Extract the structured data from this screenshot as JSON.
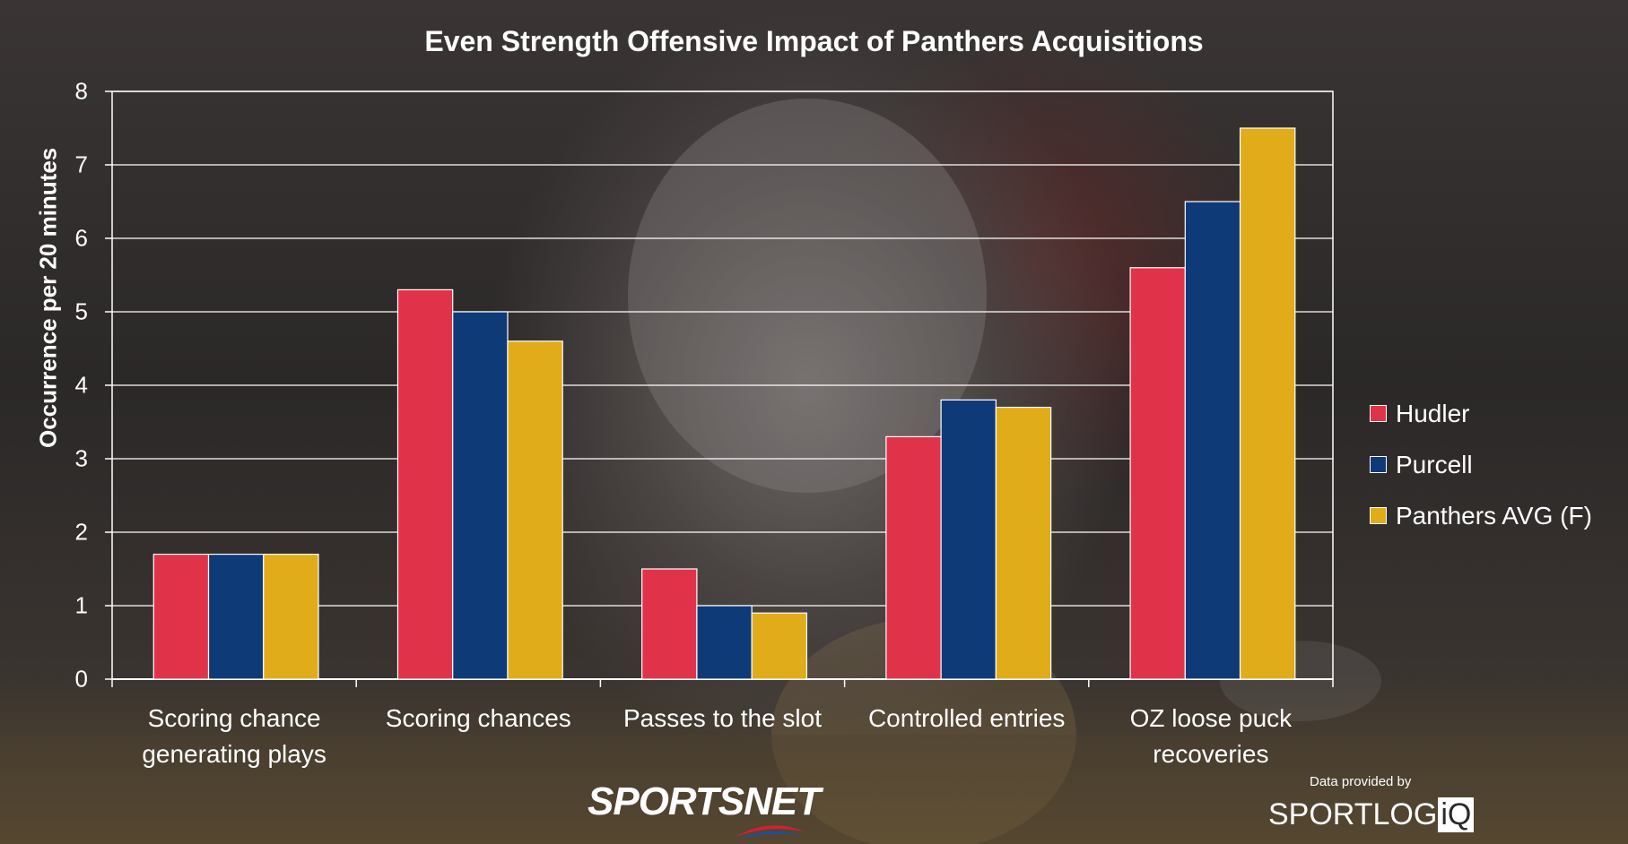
{
  "chart_data": {
    "type": "bar",
    "title": "Even Strength Offensive Impact of Panthers Acquisitions",
    "xlabel": "",
    "ylabel": "Occurrence per 20 minutes",
    "ylim": [
      0,
      8
    ],
    "yticks": [
      "0",
      "1",
      "2",
      "3",
      "4",
      "5",
      "6",
      "7",
      "8"
    ],
    "grid": true,
    "legend_position": "right",
    "categories": [
      [
        "Scoring chance",
        "generating plays"
      ],
      [
        "Scoring chances"
      ],
      [
        "Passes to the slot"
      ],
      [
        "Controlled entries"
      ],
      [
        "OZ loose puck",
        "recoveries"
      ]
    ],
    "series": [
      {
        "name": "Hudler",
        "color": "#e0334a",
        "values": [
          1.7,
          5.3,
          1.5,
          3.3,
          5.6
        ]
      },
      {
        "name": "Purcell",
        "color": "#0f3a78",
        "values": [
          1.7,
          5.0,
          1.0,
          3.8,
          6.5
        ]
      },
      {
        "name": "Panthers AVG (F)",
        "color": "#e0ac1a",
        "values": [
          1.7,
          4.6,
          0.9,
          3.7,
          7.5
        ]
      }
    ]
  },
  "branding": {
    "broadcaster": "SPORTSNET",
    "source_label": "Data provided by",
    "provider_main": "SPORTLOG",
    "provider_box": "iQ"
  }
}
